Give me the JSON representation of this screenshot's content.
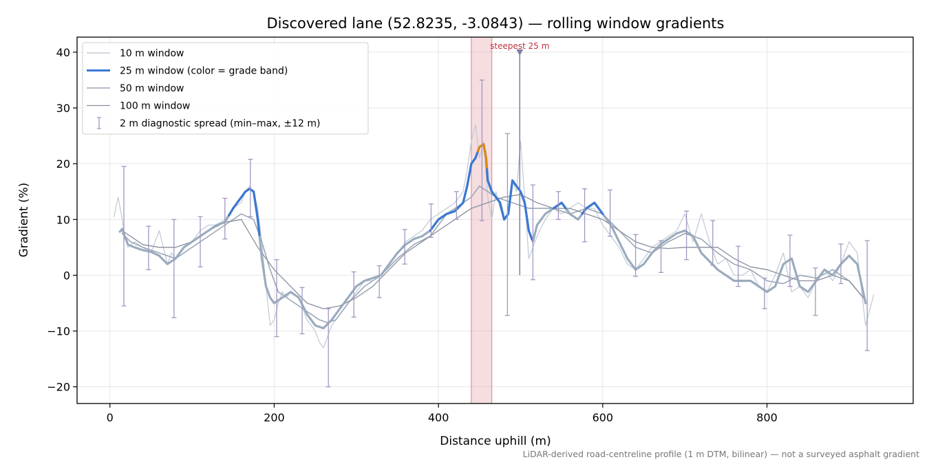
{
  "chart_data": {
    "type": "line",
    "title": "Discovered lane (52.8235, -3.0843) — rolling window gradients",
    "xlabel": "Distance uphill (m)",
    "ylabel": "Gradient (%)",
    "xlim": [
      -40,
      978
    ],
    "ylim": [
      -23,
      42.7
    ],
    "x_ticks": [
      0,
      200,
      400,
      600,
      800
    ],
    "y_ticks": [
      -20,
      -10,
      0,
      10,
      20,
      30,
      40
    ],
    "x_tick_labels": [
      "0",
      "200",
      "400",
      "600",
      "800"
    ],
    "y_tick_labels": [
      "−20",
      "−10",
      "0",
      "10",
      "20",
      "30",
      "40"
    ],
    "grid": true,
    "legend_position": "top-left",
    "footnote": "LiDAR-derived road-centreline profile (1 m DTM, bilinear) — not a surveyed asphalt gradient",
    "colors": {
      "w10": "#c3ccd6",
      "w25_base": "#9aabbd",
      "w25_steep": "#3a78d4",
      "w25_peak": "#d9860d",
      "w50": "#9ba6b6",
      "w100": "#878e9c",
      "errorbar": "#a097c0",
      "highlight": "#e8b3ba",
      "annotation": "#c0303a",
      "grid": "#e6e6e6"
    },
    "series": [
      {
        "name": "10 m window",
        "x": [
          5,
          10,
          15,
          18,
          22,
          30,
          40,
          50,
          60,
          70,
          75,
          80,
          90,
          100,
          110,
          120,
          130,
          140,
          150,
          160,
          165,
          170,
          175,
          180,
          185,
          190,
          195,
          200,
          205,
          210,
          215,
          220,
          230,
          240,
          250,
          255,
          260,
          270,
          280,
          290,
          300,
          310,
          320,
          330,
          340,
          350,
          360,
          370,
          380,
          390,
          400,
          410,
          420,
          430,
          435,
          440,
          445,
          450,
          455,
          460,
          465,
          470,
          475,
          480,
          485,
          490,
          495,
          500,
          505,
          510,
          515,
          520,
          530,
          540,
          550,
          560,
          570,
          580,
          590,
          600,
          610,
          620,
          630,
          640,
          650,
          660,
          670,
          680,
          690,
          700,
          710,
          720,
          730,
          740,
          750,
          760,
          770,
          780,
          790,
          800,
          810,
          820,
          830,
          840,
          850,
          860,
          870,
          880,
          890,
          900,
          910,
          920,
          930
        ],
        "values": [
          10.5,
          14,
          10,
          7,
          5,
          6,
          5,
          4,
          8,
          2,
          4,
          3,
          5,
          6,
          8,
          9,
          9,
          10,
          12,
          13,
          15,
          16,
          15,
          12,
          6,
          -2,
          -9,
          -8,
          -5,
          -3,
          -4,
          -3,
          -4,
          -8,
          -10,
          -12,
          -13,
          -9,
          -7,
          -5,
          -3,
          -1,
          -1,
          0,
          2,
          4,
          6,
          7,
          8,
          10,
          11,
          12,
          13,
          15,
          19,
          24,
          27,
          21,
          24,
          14,
          10,
          15,
          12,
          10,
          11,
          17,
          15,
          24,
          14,
          3,
          5,
          7,
          10,
          12,
          11,
          12,
          13,
          12,
          12,
          9,
          7,
          5,
          2,
          1,
          3,
          5,
          6,
          7,
          8,
          11,
          6,
          11,
          6,
          2,
          3,
          0,
          0,
          1,
          -2,
          -3,
          0,
          4,
          -3,
          -2,
          -4,
          -1,
          1,
          -1,
          2,
          6,
          4,
          -9,
          -3.5
        ],
        "color": "#c3ccd6",
        "width": 1.3
      },
      {
        "name": "25 m window (color = grade band)",
        "x": [
          12,
          15,
          18,
          22,
          30,
          40,
          50,
          60,
          70,
          75,
          80,
          90,
          100,
          110,
          120,
          130,
          140,
          150,
          160,
          165,
          170,
          175,
          180,
          185,
          190,
          195,
          200,
          205,
          210,
          215,
          220,
          230,
          240,
          250,
          260,
          270,
          280,
          290,
          300,
          310,
          320,
          330,
          340,
          350,
          360,
          370,
          380,
          390,
          400,
          410,
          420,
          430,
          435,
          440,
          445,
          450,
          455,
          458,
          460,
          465,
          470,
          475,
          480,
          485,
          490,
          495,
          500,
          505,
          510,
          515,
          520,
          530,
          540,
          550,
          560,
          570,
          580,
          590,
          600,
          610,
          620,
          630,
          640,
          650,
          660,
          670,
          680,
          690,
          700,
          710,
          720,
          730,
          740,
          750,
          760,
          770,
          780,
          790,
          800,
          810,
          820,
          830,
          840,
          850,
          860,
          870,
          880,
          890,
          900,
          910,
          920
        ],
        "values": [
          7.8,
          8.3,
          7,
          5.5,
          5,
          4.5,
          4.2,
          3.5,
          2,
          2.5,
          3,
          5,
          6,
          7,
          8,
          9,
          9.5,
          12,
          14,
          15,
          15.5,
          15,
          10,
          3,
          -2,
          -4,
          -5,
          -4.5,
          -4,
          -3.5,
          -3,
          -4,
          -7,
          -9,
          -9.5,
          -8,
          -6,
          -4,
          -2,
          -1,
          -0.5,
          0,
          2,
          4,
          5.5,
          6.5,
          7,
          8,
          10,
          11,
          11.5,
          13,
          16,
          20,
          21,
          23,
          23.5,
          21,
          17,
          15,
          14,
          13,
          10,
          11,
          17,
          16,
          15,
          13,
          8,
          6,
          9,
          11,
          12,
          13,
          11,
          10,
          12,
          13,
          11,
          9,
          6,
          3,
          1,
          2,
          4,
          5.5,
          6.5,
          7.5,
          8,
          7,
          4,
          2.5,
          1,
          0,
          -1,
          -1,
          -1,
          -2,
          -3,
          -2,
          2,
          3,
          -2,
          -3,
          -1,
          1,
          0,
          2,
          3.5,
          2,
          -5
        ],
        "color": "#9aabbd",
        "width": 3.2,
        "segments": [
          {
            "band": "steep",
            "from": 145,
            "to": 182,
            "color": "#3a78d4"
          },
          {
            "band": "steep",
            "from": 390,
            "to": 448,
            "color": "#3a78d4"
          },
          {
            "band": "peak",
            "from": 448,
            "to": 459,
            "color": "#d9860d"
          },
          {
            "band": "steep",
            "from": 459,
            "to": 514,
            "color": "#3a78d4"
          },
          {
            "band": "steep",
            "from": 540,
            "to": 555,
            "color": "#3a78d4"
          },
          {
            "band": "steep",
            "from": 575,
            "to": 600,
            "color": "#3a78d4"
          }
        ]
      },
      {
        "name": "50 m window",
        "x": [
          15,
          25,
          40,
          60,
          80,
          100,
          120,
          140,
          160,
          175,
          185,
          195,
          205,
          215,
          225,
          235,
          245,
          255,
          265,
          275,
          290,
          310,
          330,
          350,
          370,
          390,
          400,
          410,
          420,
          430,
          440,
          445,
          450,
          455,
          460,
          470,
          480,
          490,
          500,
          510,
          520,
          540,
          560,
          580,
          600,
          620,
          640,
          660,
          680,
          700,
          720,
          740,
          760,
          780,
          800,
          820,
          840,
          860,
          880,
          900,
          920
        ],
        "values": [
          7.5,
          6,
          5,
          4,
          3,
          5,
          7,
          9,
          11,
          10,
          6,
          1,
          -3,
          -4,
          -5,
          -6,
          -7,
          -8,
          -8.5,
          -8,
          -5,
          -2,
          0,
          3,
          5.5,
          7,
          9,
          11,
          12,
          13,
          14,
          15,
          16,
          15.5,
          15,
          14,
          13.5,
          13,
          12.5,
          12,
          12,
          12,
          11,
          12,
          11,
          8,
          5,
          4,
          6,
          7.5,
          6.5,
          4,
          2,
          1,
          -1,
          -1.5,
          0,
          -0.5,
          1,
          -1,
          -4.5
        ],
        "color": "#9ba6b6",
        "width": 1.6
      },
      {
        "name": "100 m window",
        "x": [
          15,
          40,
          60,
          80,
          100,
          120,
          140,
          160,
          180,
          200,
          220,
          240,
          260,
          280,
          300,
          320,
          340,
          360,
          380,
          400,
          420,
          440,
          460,
          480,
          500,
          520,
          540,
          560,
          580,
          600,
          620,
          640,
          660,
          680,
          700,
          720,
          740,
          760,
          780,
          800,
          820,
          840,
          860,
          880,
          900,
          920
        ],
        "values": [
          8,
          5.5,
          5,
          5,
          6,
          8,
          9.5,
          10,
          5,
          1,
          -2,
          -5,
          -6,
          -5.5,
          -4,
          -2,
          1,
          4,
          6,
          8,
          10,
          12,
          13,
          14,
          14.5,
          13,
          12,
          12,
          11,
          10,
          8,
          6,
          5,
          4.8,
          5,
          5,
          5,
          3,
          1.5,
          1,
          0,
          -1,
          -1,
          0,
          -1,
          -4.5
        ],
        "color": "#878e9c",
        "width": 1.3
      },
      {
        "name": "2 m diagnostic spread (min–max, ±12 m)",
        "type": "errorbar",
        "x": [
          17,
          47,
          78,
          110,
          140,
          171,
          203,
          234,
          266,
          297,
          328,
          359,
          391,
          422,
          453,
          484,
          515,
          546,
          578,
          609,
          640,
          671,
          702,
          734,
          765,
          797,
          828,
          859,
          890,
          922
        ],
        "values": [
          8,
          5,
          4.5,
          6,
          10,
          16,
          -3,
          -5,
          -9,
          -4,
          0,
          6,
          10,
          13,
          22,
          11,
          8,
          13,
          11,
          10,
          2,
          3,
          8,
          6,
          2,
          -4,
          2,
          -3,
          2,
          -5
        ],
        "min": [
          -5.5,
          1,
          -7.6,
          1.5,
          6.5,
          10.5,
          -11,
          -10.5,
          -20,
          -7.5,
          -4,
          2,
          6.8,
          10,
          9.8,
          -7.2,
          -0.8,
          10,
          6,
          7,
          -0.2,
          0.5,
          2.8,
          1.8,
          -2,
          -6,
          -2,
          -7.2,
          -1.5,
          -13.5
        ],
        "max": [
          19.5,
          8.8,
          10,
          10.5,
          13.8,
          20.8,
          2.8,
          -2.2,
          -6,
          0.6,
          1.7,
          8.2,
          12.8,
          15,
          35,
          25.4,
          16.2,
          15,
          15.5,
          15.3,
          7.3,
          6.2,
          11.5,
          9.8,
          5.2,
          -0.5,
          7.2,
          1.3,
          5.6,
          6.2
        ],
        "color": "#a097c0"
      }
    ],
    "highlight_band": {
      "from": 440,
      "to": 465,
      "color": "#e8b3ba"
    },
    "annotation": {
      "text": "steepest 25 m",
      "x": 499,
      "y": 40,
      "line_from": 0,
      "color": "#c0303a",
      "marker_color": "#7f7fa0"
    }
  }
}
